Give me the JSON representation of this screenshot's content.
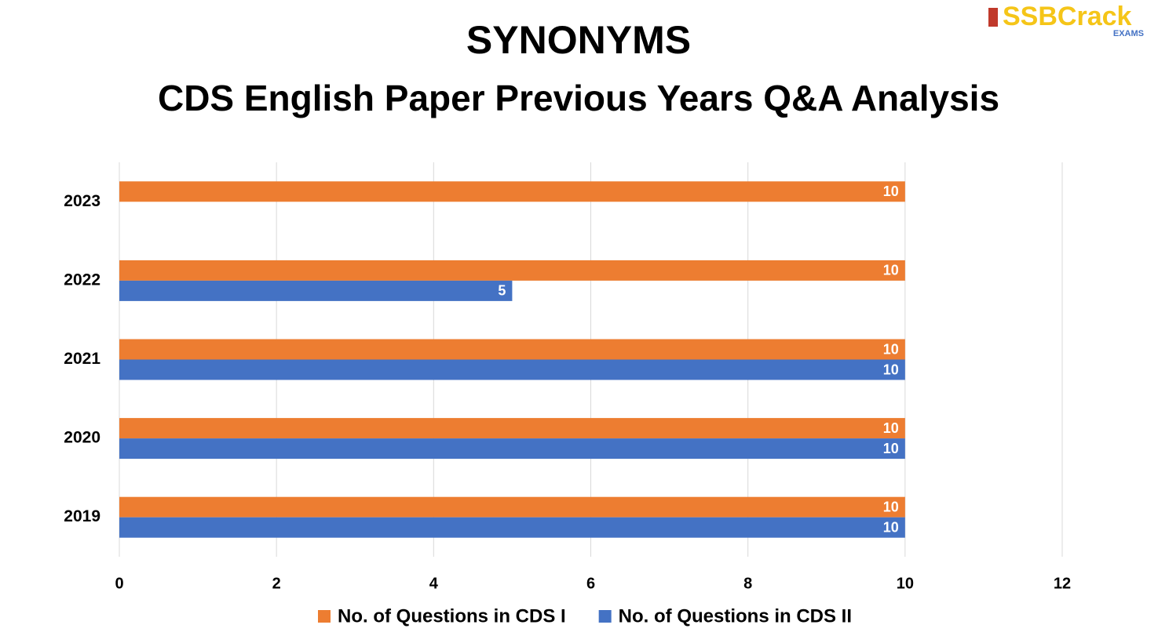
{
  "logo": {
    "text": "SSBCrack",
    "sub": "EXAMS"
  },
  "chart_data": {
    "type": "hbar",
    "title": "SYNONYMS",
    "subtitle": "CDS English Paper Previous Years Q&A Analysis",
    "categories": [
      "2023",
      "2022",
      "2021",
      "2020",
      "2019"
    ],
    "series": [
      {
        "name": "No. of Questions in CDS I",
        "color": "#ed7d31",
        "values": [
          10,
          10,
          10,
          10,
          10
        ]
      },
      {
        "name": "No. of Questions in CDS II",
        "color": "#4472c4",
        "values": [
          null,
          5,
          10,
          10,
          10
        ]
      }
    ],
    "xlim": [
      0,
      12
    ],
    "xticks": [
      0,
      2,
      4,
      6,
      8,
      10,
      12
    ],
    "grid": true,
    "legend": "bottom"
  }
}
